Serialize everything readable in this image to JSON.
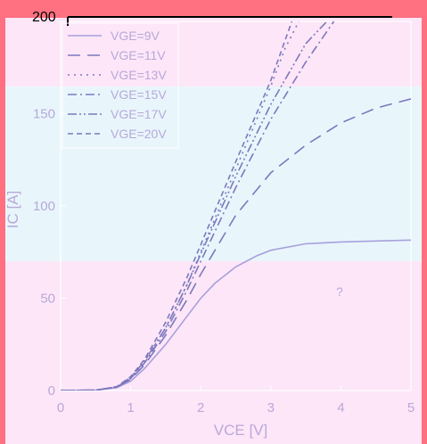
{
  "chart_data": {
    "type": "line",
    "title": "",
    "xlabel": "VCE [V]",
    "ylabel": "IC [A]",
    "xlim": [
      0,
      5
    ],
    "ylim": [
      0,
      200
    ],
    "x_ticks": [
      "0",
      "1",
      "2",
      "3",
      "4",
      "5"
    ],
    "y_ticks": [
      "0",
      "50",
      "100",
      "150",
      "200"
    ],
    "grid": false,
    "legend_position": "top-left",
    "series": [
      {
        "name": "VGE=9V",
        "style": "solid",
        "x": [
          0,
          0.5,
          0.8,
          1.0,
          1.2,
          1.5,
          1.8,
          2.0,
          2.2,
          2.5,
          2.8,
          3.0,
          3.5,
          4.0,
          4.5,
          5.0
        ],
        "y": [
          0,
          0.2,
          1.5,
          5,
          12,
          25,
          40,
          50,
          58,
          67,
          73,
          76,
          79.5,
          80.5,
          81,
          81.5
        ]
      },
      {
        "name": "VGE=11V",
        "style": "longdash",
        "x": [
          0,
          0.5,
          0.8,
          1.0,
          1.2,
          1.5,
          1.8,
          2.0,
          2.5,
          3.0,
          3.5,
          4.0,
          4.5,
          5.0
        ],
        "y": [
          0,
          0.2,
          1.8,
          6,
          14,
          30,
          49,
          63,
          95,
          118,
          133,
          145,
          153,
          158
        ]
      },
      {
        "name": "VGE=13V",
        "style": "dotted",
        "x": [
          0,
          0.5,
          0.8,
          1.0,
          1.2,
          1.5,
          1.8,
          2.0,
          2.5,
          3.0,
          3.2,
          3.4
        ],
        "y": [
          0,
          0.2,
          2,
          7,
          16,
          34,
          57,
          75,
          120,
          165,
          185,
          200
        ]
      },
      {
        "name": "VGE=15V",
        "style": "dashdot",
        "x": [
          0,
          0.5,
          0.8,
          1.0,
          1.2,
          1.5,
          1.8,
          2.0,
          2.5,
          3.0,
          3.5,
          3.9
        ],
        "y": [
          0,
          0.2,
          1.9,
          6.5,
          15,
          32,
          54,
          70,
          110,
          147,
          178,
          200
        ]
      },
      {
        "name": "VGE=17V",
        "style": "dashdotdot",
        "x": [
          0,
          0.5,
          0.8,
          1.0,
          1.2,
          1.5,
          1.8,
          2.0,
          2.5,
          3.0,
          3.5,
          3.8
        ],
        "y": [
          0,
          0.2,
          2,
          7,
          16,
          34,
          57,
          74,
          116,
          155,
          188,
          200
        ]
      },
      {
        "name": "VGE=20V",
        "style": "shortdash",
        "x": [
          0,
          0.5,
          0.8,
          1.0,
          1.2,
          1.5,
          1.8,
          2.0,
          2.5,
          3.0,
          3.3
        ],
        "y": [
          0,
          0.2,
          2.1,
          7.5,
          17,
          37,
          61,
          79,
          124,
          168,
          200
        ]
      }
    ],
    "top_label": "200",
    "annotation": "?"
  },
  "colors": {
    "frame": "#ff7080",
    "band_light": "#e8f6fc",
    "band_pink": "#fde6f8",
    "line": "#a8a0dc",
    "line_dark": "#7c78bc",
    "text": "#b8a8d8",
    "legend_border": "#ffffff"
  }
}
